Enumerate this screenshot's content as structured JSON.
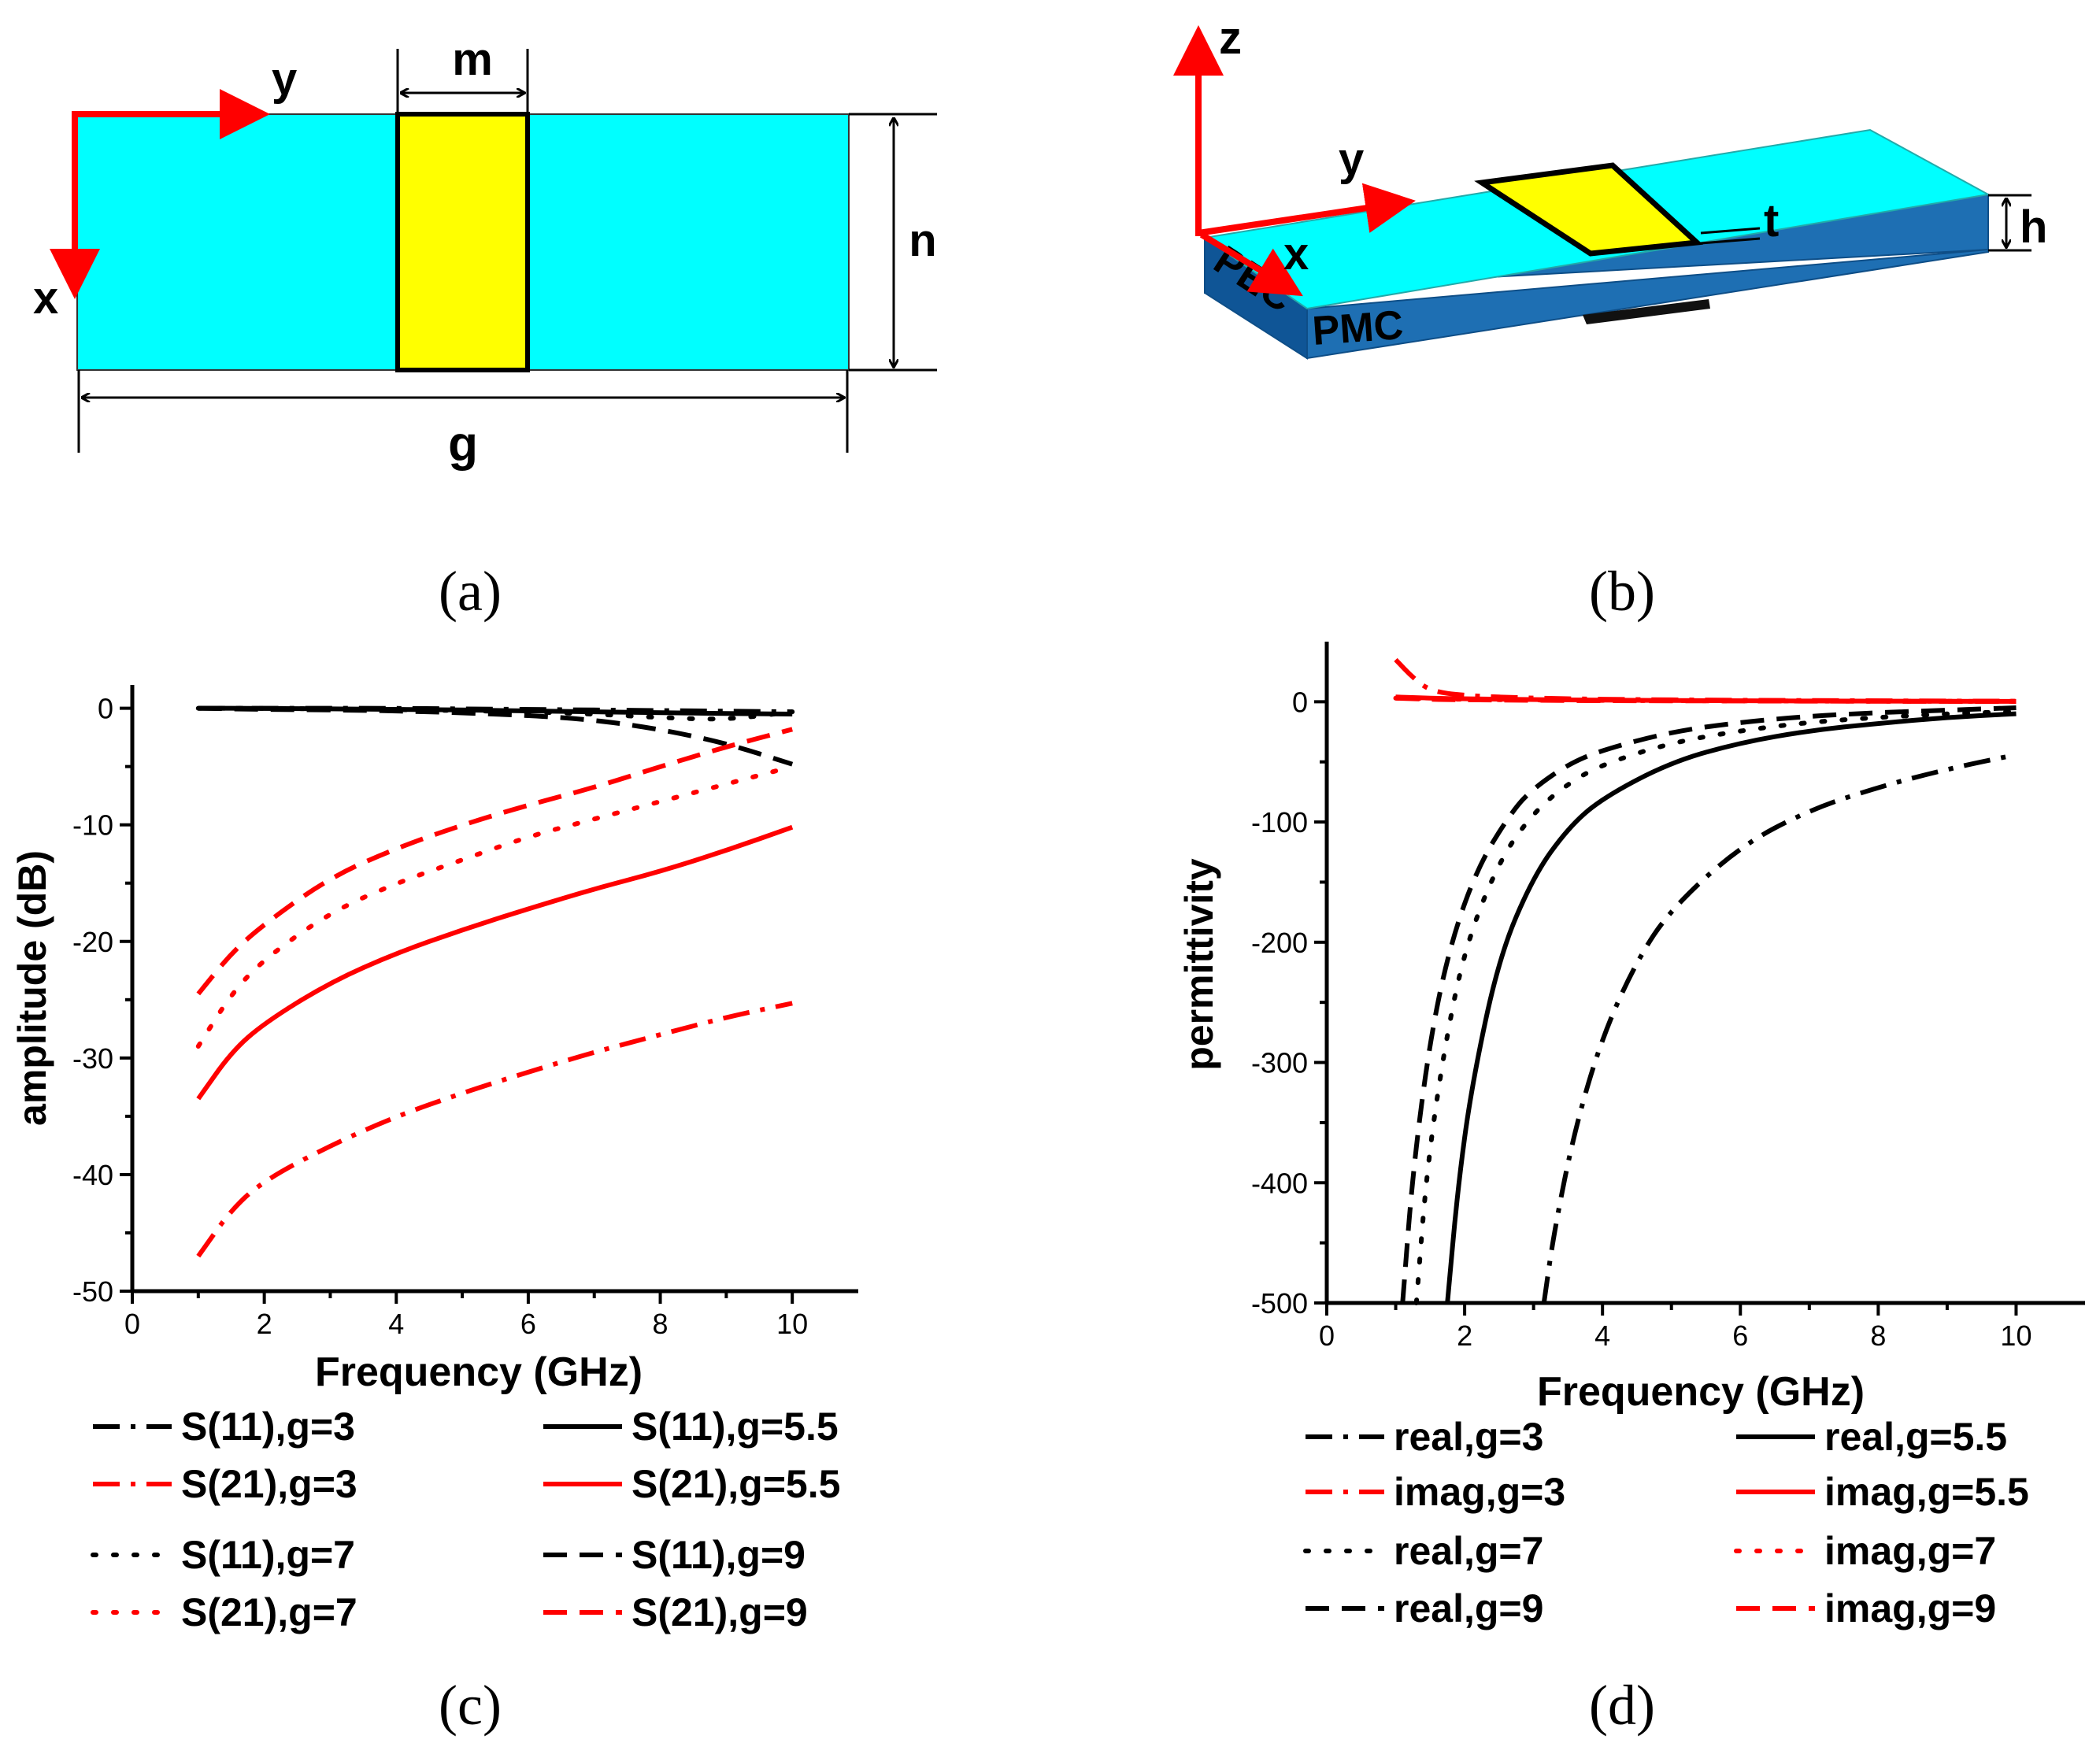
{
  "captions": {
    "a": "(a)",
    "b": "(b)",
    "c": "(c)",
    "d": "(d)"
  },
  "diagram_a": {
    "axis_y": "y",
    "axis_x": "x",
    "dim_m": "m",
    "dim_n": "n",
    "dim_g": "g"
  },
  "diagram_b": {
    "axis_z": "z",
    "axis_y": "y",
    "axis_x": "x",
    "dim_t": "t",
    "dim_h": "h",
    "label_pec": "PEC",
    "label_pmc": "PMC"
  },
  "colors": {
    "substrate": "#00FFFF",
    "substrate_side": "#1E6FB3",
    "patch": "#FFFF00",
    "arrow": "#FF0000",
    "black": "#000000",
    "red": "#FF0000"
  },
  "chart_data": [
    {
      "id": "c",
      "type": "line",
      "xlabel": "Frequency (GHz)",
      "ylabel": "amplitude (dB)",
      "xlim": [
        0,
        11
      ],
      "ylim": [
        -50,
        2
      ],
      "xticks": [
        0,
        2,
        4,
        6,
        8,
        10
      ],
      "yticks": [
        0,
        -10,
        -20,
        -30,
        -40,
        -50
      ],
      "series": [
        {
          "name": "S(11),g=3",
          "color": "black",
          "dash": "dashdot",
          "x": [
            1,
            2,
            4,
            6,
            8,
            10
          ],
          "y": [
            0,
            0,
            0,
            -0.1,
            -0.2,
            -0.3
          ]
        },
        {
          "name": "S(11),g=5.5",
          "color": "black",
          "dash": "solid",
          "x": [
            1,
            2,
            4,
            6,
            8,
            10
          ],
          "y": [
            0,
            0,
            -0.1,
            -0.2,
            -0.4,
            -0.5
          ]
        },
        {
          "name": "S(21),g=3",
          "color": "red",
          "dash": "dashdot",
          "x": [
            1,
            1.5,
            2,
            3,
            4,
            5,
            6,
            7,
            8,
            9,
            10
          ],
          "y": [
            -47,
            -43,
            -40.5,
            -37.5,
            -35,
            -33,
            -31.2,
            -29.5,
            -28,
            -26.5,
            -25.3
          ]
        },
        {
          "name": "S(21),g=5.5",
          "color": "red",
          "dash": "solid",
          "x": [
            1,
            1.5,
            2,
            3,
            4,
            5,
            6,
            7,
            8,
            9,
            10
          ],
          "y": [
            -33.5,
            -29.5,
            -27,
            -23.5,
            -21,
            -19,
            -17.2,
            -15.5,
            -14,
            -12.2,
            -10.2
          ]
        },
        {
          "name": "S(11),g=7",
          "color": "black",
          "dash": "dotted",
          "x": [
            1,
            2,
            4,
            6,
            7,
            8,
            9,
            10
          ],
          "y": [
            0,
            0,
            -0.1,
            -0.3,
            -0.5,
            -0.8,
            -1.0,
            -0.3
          ]
        },
        {
          "name": "S(11),g=9",
          "color": "black",
          "dash": "dashed",
          "x": [
            1,
            2,
            4,
            6,
            7,
            8,
            9,
            10
          ],
          "y": [
            0,
            -0.1,
            -0.2,
            -0.6,
            -1.0,
            -1.8,
            -3.0,
            -4.8
          ]
        },
        {
          "name": "S(21),g=7",
          "color": "red",
          "dash": "dotted",
          "x": [
            1,
            1.5,
            2,
            3,
            4,
            5,
            6,
            7,
            8,
            9,
            10
          ],
          "y": [
            -29,
            -24.5,
            -21.5,
            -17.5,
            -15,
            -13,
            -11,
            -9.5,
            -8,
            -6.5,
            -5
          ]
        },
        {
          "name": "S(21),g=9",
          "color": "red",
          "dash": "dashed",
          "x": [
            1,
            1.5,
            2,
            3,
            4,
            5,
            6,
            7,
            8,
            9,
            10
          ],
          "y": [
            -24.5,
            -21,
            -18.5,
            -14.5,
            -12,
            -10,
            -8.3,
            -6.8,
            -5,
            -3.3,
            -1.8
          ]
        }
      ]
    },
    {
      "id": "d",
      "type": "line",
      "xlabel": "Frequency (GHz)",
      "ylabel": "permittivity",
      "xlim": [
        0,
        11
      ],
      "ylim": [
        -500,
        50
      ],
      "xticks": [
        0,
        2,
        4,
        6,
        8,
        10
      ],
      "yticks": [
        0,
        -100,
        -200,
        -300,
        -400,
        -500
      ],
      "series": [
        {
          "name": "real,g=3",
          "color": "black",
          "dash": "dashdot",
          "x": [
            3.15,
            3.3,
            3.6,
            4,
            4.5,
            5,
            6,
            7,
            8,
            9,
            10
          ],
          "y": [
            -500,
            -440,
            -355,
            -278,
            -215,
            -172,
            -120,
            -90,
            -71,
            -56,
            -44
          ]
        },
        {
          "name": "real,g=5.5",
          "color": "black",
          "dash": "solid",
          "x": [
            1.75,
            1.9,
            2.1,
            2.5,
            3,
            3.5,
            4,
            5,
            6,
            7,
            8,
            9,
            10
          ],
          "y": [
            -500,
            -405,
            -320,
            -212,
            -145,
            -105,
            -80,
            -50,
            -34,
            -24,
            -18,
            -13,
            -10
          ]
        },
        {
          "name": "imag,g=3",
          "color": "red",
          "dash": "dashdot",
          "x": [
            1,
            1.25,
            1.5,
            2,
            3,
            4,
            6,
            8,
            10
          ],
          "y": [
            35,
            20,
            9,
            5,
            3,
            2,
            1.2,
            0.8,
            0.5
          ]
        },
        {
          "name": "imag,g=5.5",
          "color": "red",
          "dash": "solid",
          "x": [
            1,
            1.5,
            2,
            3,
            4,
            6,
            8,
            10
          ],
          "y": [
            4,
            3,
            2.5,
            1.8,
            1.3,
            0.8,
            0.5,
            0.3
          ]
        },
        {
          "name": "real,g=7",
          "color": "black",
          "dash": "dotted",
          "x": [
            1.3,
            1.45,
            1.7,
            2,
            2.5,
            3,
            3.5,
            4,
            5,
            6,
            7,
            8,
            9,
            10
          ],
          "y": [
            -500,
            -390,
            -290,
            -205,
            -132,
            -92,
            -68,
            -52,
            -34,
            -24,
            -17,
            -13,
            -10,
            -8
          ]
        },
        {
          "name": "imag,g=7",
          "color": "red",
          "dash": "dotted",
          "x": [
            1,
            1.5,
            2,
            3,
            4,
            6,
            8,
            10
          ],
          "y": [
            3,
            2.5,
            2,
            1.5,
            1.1,
            0.7,
            0.4,
            0.3
          ]
        },
        {
          "name": "real,g=9",
          "color": "black",
          "dash": "dashed",
          "x": [
            1.1,
            1.25,
            1.5,
            1.8,
            2.2,
            2.7,
            3,
            3.5,
            4,
            5,
            6,
            7,
            8,
            9,
            10
          ],
          "y": [
            -500,
            -390,
            -280,
            -200,
            -136,
            -90,
            -72,
            -52,
            -40,
            -25,
            -17,
            -12,
            -9,
            -7,
            -5
          ]
        },
        {
          "name": "imag,g=9",
          "color": "red",
          "dash": "dashed",
          "x": [
            1,
            1.5,
            2,
            3,
            4,
            6,
            8,
            10
          ],
          "y": [
            3,
            2,
            1.6,
            1.2,
            0.9,
            0.6,
            0.4,
            0.2
          ]
        }
      ]
    }
  ]
}
